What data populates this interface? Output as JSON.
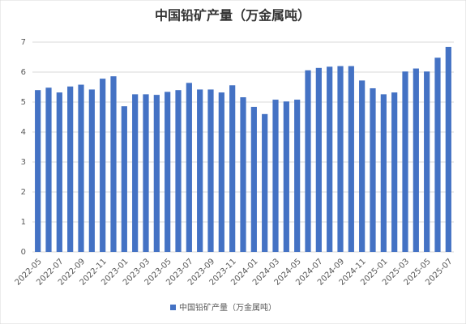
{
  "chart_data": {
    "type": "bar",
    "title": "中国铅矿产量（万金属吨）",
    "categories": [
      "2022-05",
      null,
      "2022-07",
      null,
      "2022-09",
      null,
      "2022-11",
      null,
      "2023-01",
      null,
      "2023-03",
      null,
      "2023-05",
      null,
      "2023-07",
      null,
      "2023-09",
      null,
      "2023-11",
      null,
      "2024-01",
      null,
      "2024-03",
      null,
      "2024-05",
      null,
      "2024-07",
      null,
      "2024-09",
      null,
      "2024-11",
      null,
      "2025-01",
      null,
      "2025-03",
      null,
      "2025-05",
      null,
      "2025-07"
    ],
    "series": [
      {
        "name": "中国铅矿产量（万金属吨）",
        "color": "#4472c4",
        "values": [
          5.4,
          5.48,
          5.32,
          5.52,
          5.58,
          5.42,
          5.78,
          5.86,
          4.86,
          5.26,
          5.26,
          5.24,
          5.34,
          5.4,
          5.64,
          5.42,
          5.42,
          5.32,
          5.56,
          5.16,
          4.84,
          4.6,
          5.08,
          5.02,
          5.08,
          6.06,
          6.14,
          6.18,
          6.2,
          6.2,
          5.72,
          5.46,
          5.26,
          5.32,
          6.02,
          6.12,
          6.02,
          6.48,
          6.84
        ]
      }
    ],
    "ylim": [
      0,
      7
    ],
    "yticks": [
      0,
      1,
      2,
      3,
      4,
      5,
      6,
      7
    ],
    "grid": true,
    "legend": "bottom"
  }
}
